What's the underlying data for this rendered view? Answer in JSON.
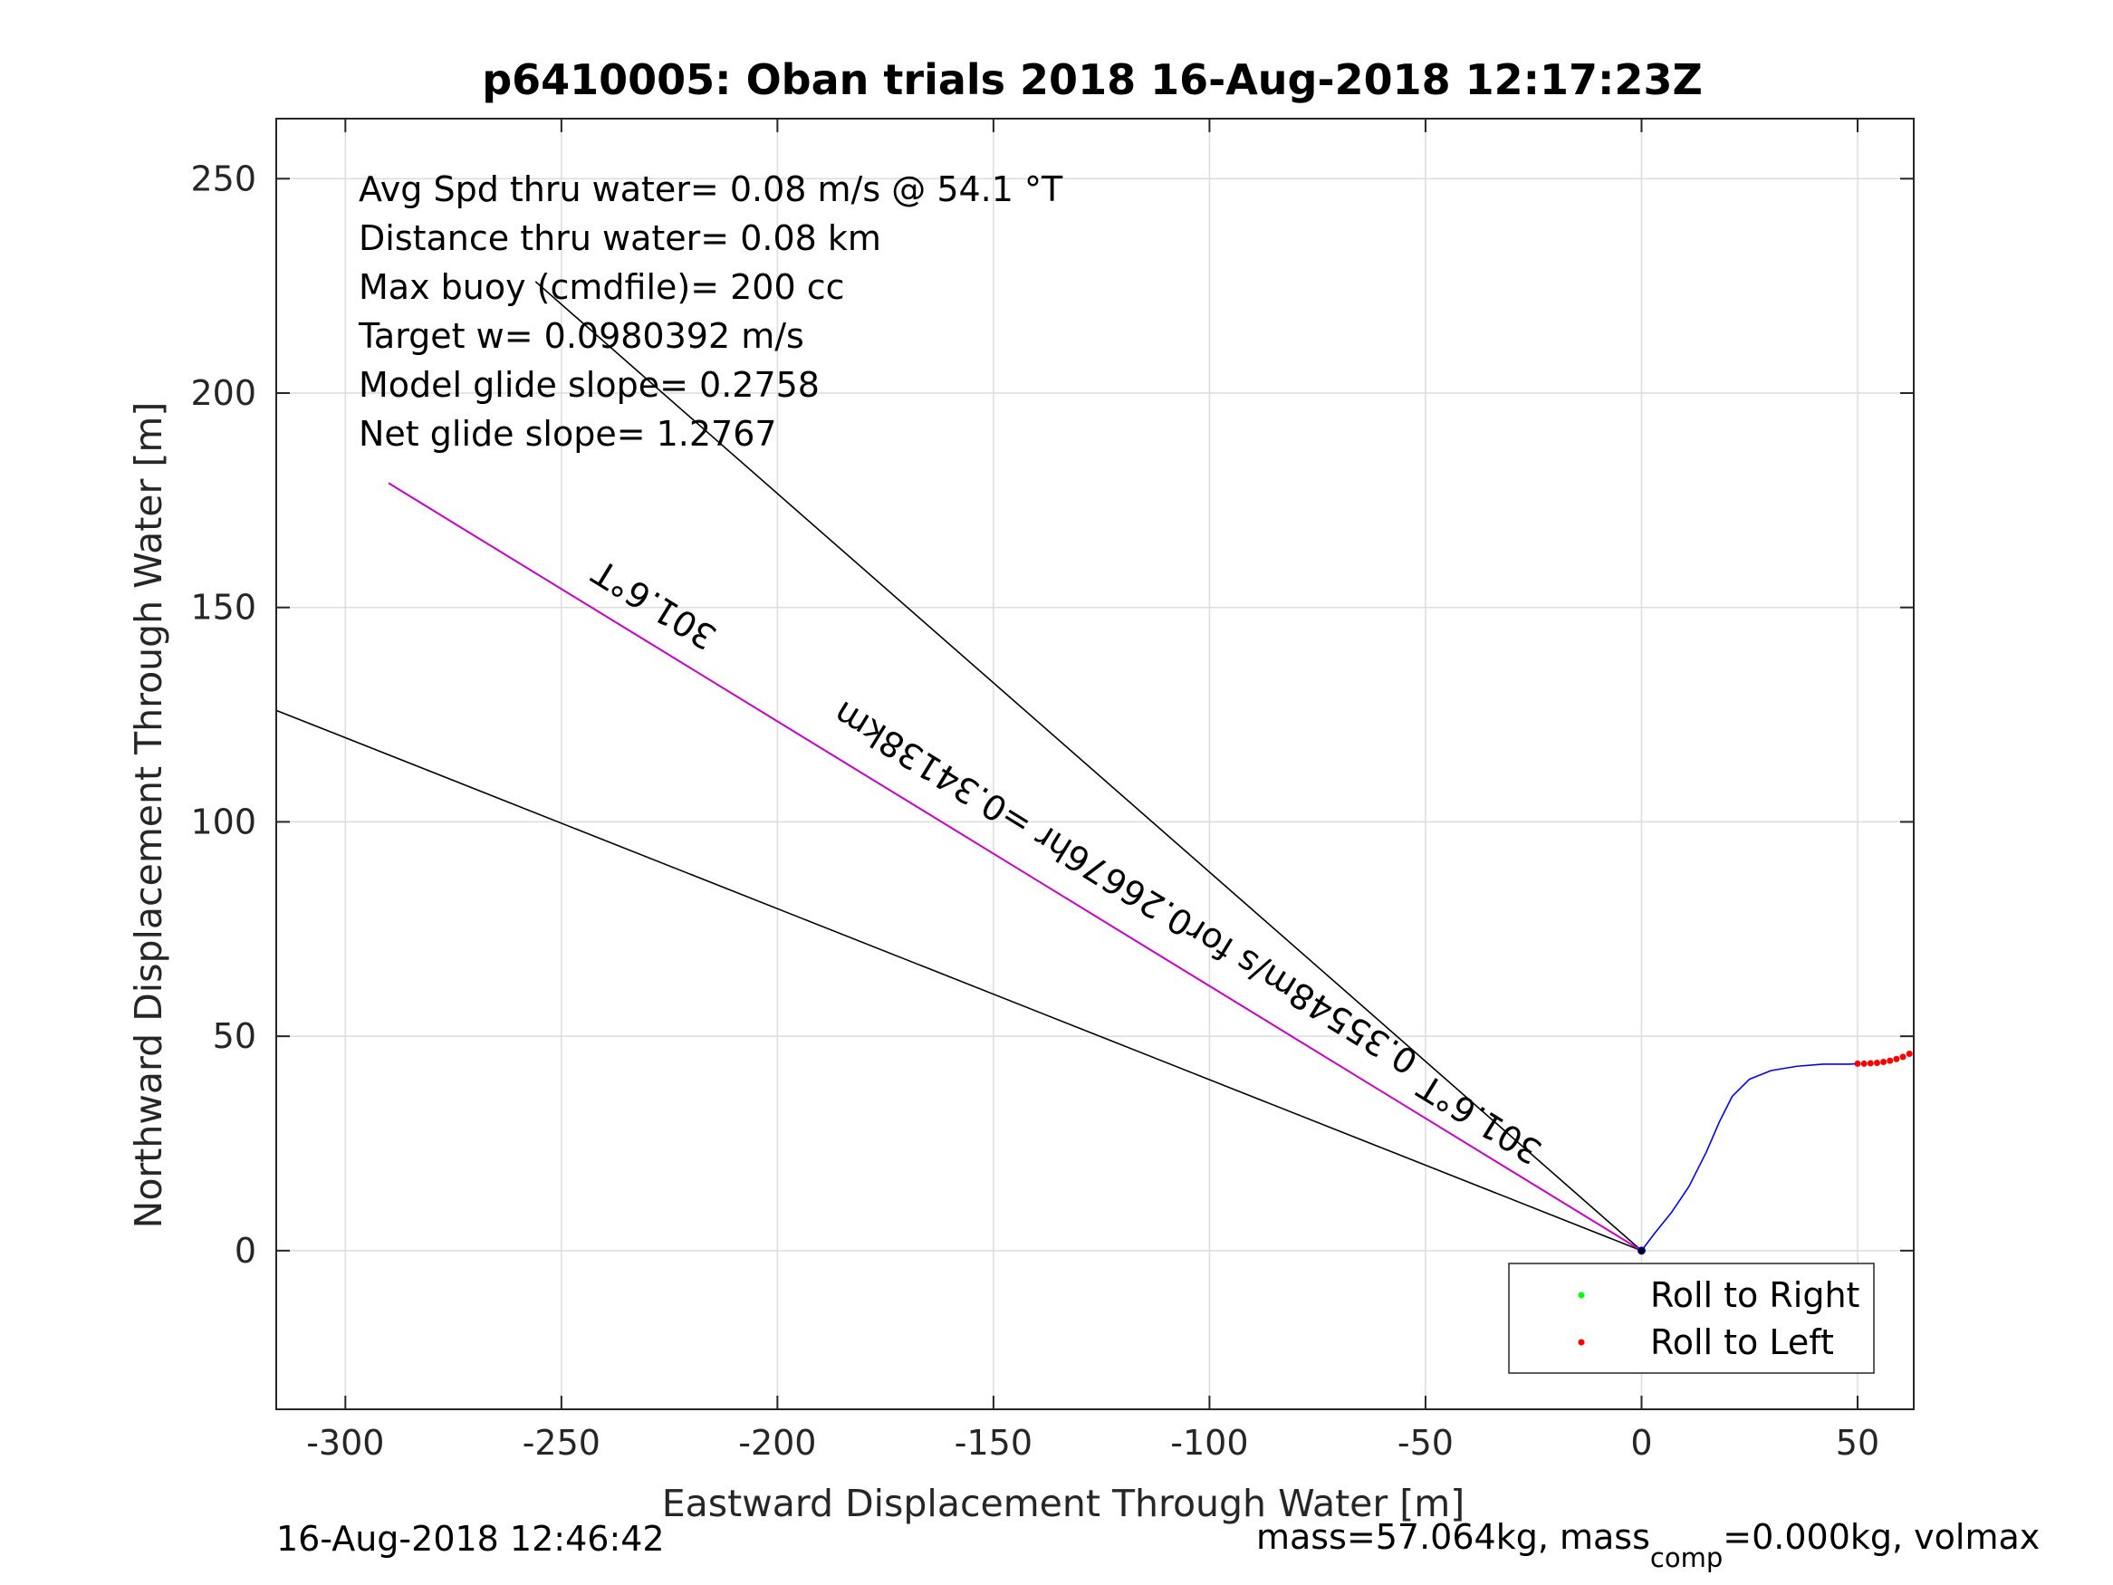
{
  "chart_data": {
    "type": "line",
    "title": "p6410005: Oban trials 2018 16-Aug-2018 12:17:23Z",
    "xlabel": "Eastward Displacement Through Water [m]",
    "ylabel": "Northward Displacement Through Water [m]",
    "xlim": [
      -316,
      63
    ],
    "ylim": [
      -37,
      264
    ],
    "xticks": [
      -300,
      -250,
      -200,
      -150,
      -100,
      -50,
      0,
      50
    ],
    "yticks": [
      0,
      50,
      100,
      150,
      200,
      250
    ],
    "grid": true,
    "annotations": [
      "Avg Spd thru water=  0.08 m/s @  54.1 °T",
      "Distance thru water=  0.08 km",
      "Max buoy (cmdfile)= 200 cc",
      "Target w= 0.0980392 m/s",
      "Model glide slope= 0.2758",
      "Net glide slope= 1.2767"
    ],
    "series": [
      {
        "color": "#000000",
        "x": [
          0,
          -256
        ],
        "y": [
          0,
          226
        ]
      },
      {
        "color": "#000000",
        "x": [
          0,
          -316
        ],
        "y": [
          0,
          126
        ]
      },
      {
        "color": "#cc00cc",
        "x": [
          0,
          -290
        ],
        "y": [
          0,
          179
        ]
      },
      {
        "color": "#0000ff",
        "x": [
          0,
          3,
          7,
          11,
          15,
          18,
          21,
          25,
          30,
          36,
          42,
          48,
          50
        ],
        "y": [
          0,
          4,
          9,
          15,
          23,
          30,
          36,
          40,
          42,
          43,
          43.5,
          43.5,
          43.6
        ]
      },
      {
        "name": "Roll to Right",
        "color": "#00ff00",
        "marker": "dot",
        "x": [],
        "y": []
      },
      {
        "name": "Roll to Left",
        "color": "#ff0000",
        "marker": "dot",
        "x": [
          50,
          51.5,
          53,
          54.5,
          56,
          57.5,
          59,
          60.5,
          62
        ],
        "y": [
          43.6,
          43.6,
          43.7,
          43.8,
          44.0,
          44.3,
          44.7,
          45.2,
          45.9
        ]
      }
    ],
    "line_labels": [
      {
        "text": "301.6°T",
        "x": -227,
        "y": 153,
        "angle": 211.6
      },
      {
        "text": "301.6°T",
        "x": -36,
        "y": 33,
        "angle": 211.6
      },
      {
        "text": "0.35548m/s for0.26676hr =0.34138km",
        "x": -118,
        "y": 87,
        "angle": 211.6
      }
    ],
    "origin_marker": {
      "x": 0,
      "y": 0
    },
    "legend": {
      "position": "bottom-right",
      "entries": [
        "Roll to Right",
        "Roll to Left"
      ]
    }
  },
  "footer": {
    "timestamp": "16-Aug-2018 12:46:42",
    "mass_prefix": "mass=57.064kg, mass",
    "mass_sub": "comp",
    "mass_suffix": "=0.000kg, volmax"
  }
}
